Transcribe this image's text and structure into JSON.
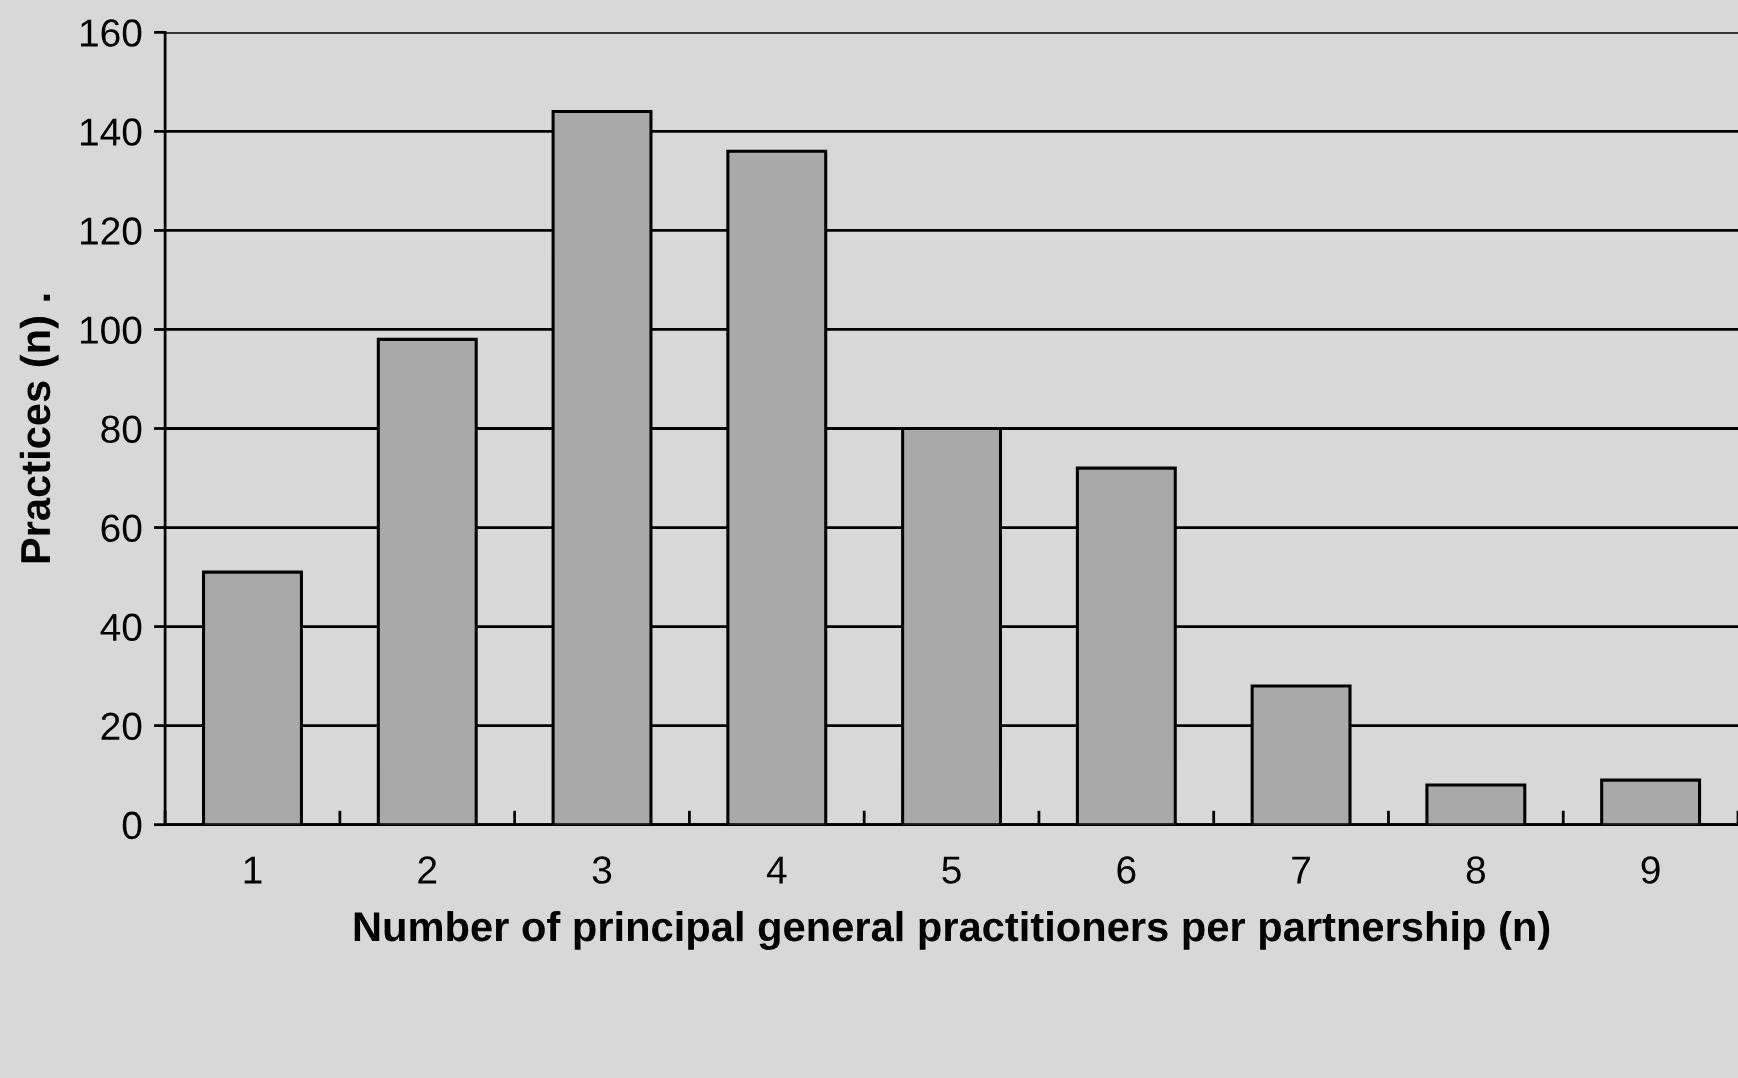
{
  "chart_data": {
    "type": "bar",
    "xlabel": "Number of principal general practitioners per partnership (n)",
    "ylabel": "Practices (n) .",
    "categories": [
      "1",
      "2",
      "3",
      "4",
      "5",
      "6",
      "7",
      "8",
      "9"
    ],
    "values": [
      51,
      98,
      144,
      136,
      80,
      72,
      28,
      8,
      9
    ],
    "color": "#a9a9a9",
    "ylim": [
      0,
      160
    ],
    "yticks": [
      0,
      20,
      40,
      60,
      80,
      100,
      120,
      140,
      160
    ],
    "grid": "y"
  }
}
